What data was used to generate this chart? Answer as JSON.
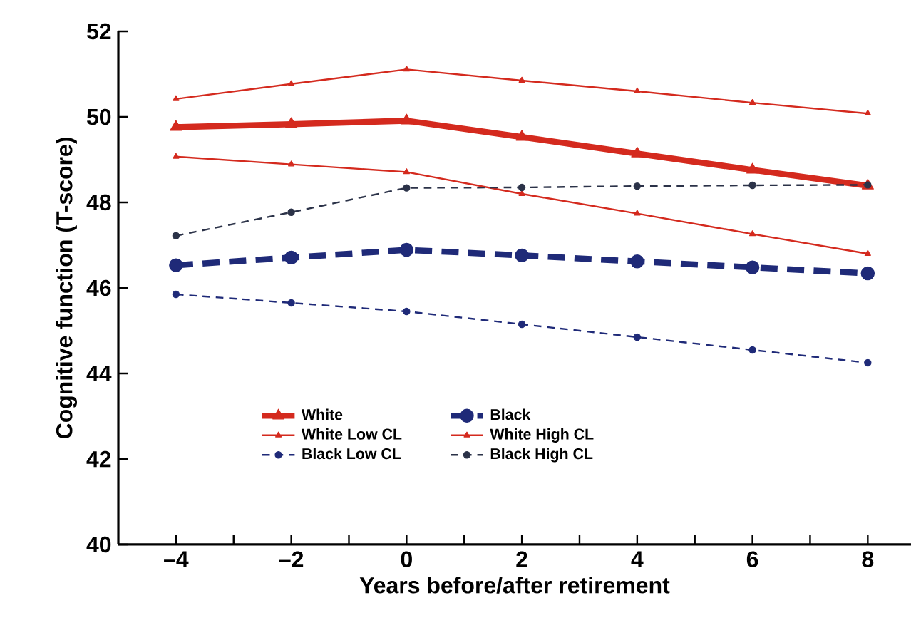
{
  "chart_data": {
    "type": "line",
    "xlabel": "Years before/after retirement",
    "ylabel": "Cognitive function (T-score)",
    "x": [
      -4,
      -2,
      0,
      2,
      4,
      6,
      8
    ],
    "series": [
      {
        "name": "White",
        "color": "#d42a1e",
        "marker": "triangle",
        "line_style": "solid",
        "values": [
          49.76,
          49.83,
          49.91,
          49.53,
          49.14,
          48.76,
          48.39
        ]
      },
      {
        "name": "Black",
        "color": "#1f2a78",
        "marker": "circle",
        "line_style": "dashed",
        "values": [
          46.53,
          46.71,
          46.89,
          46.76,
          46.62,
          46.48,
          46.34
        ]
      },
      {
        "name": "White Low CL",
        "color": "#d42a1e",
        "marker": "triangle",
        "line_style": "solid",
        "values": [
          49.07,
          48.89,
          48.71,
          48.2,
          47.74,
          47.26,
          46.8
        ]
      },
      {
        "name": "White High CL",
        "color": "#d42a1e",
        "marker": "triangle",
        "line_style": "solid",
        "values": [
          50.42,
          50.77,
          51.11,
          50.85,
          50.6,
          50.33,
          50.08
        ]
      },
      {
        "name": "Black Low CL",
        "color": "#1f2a78",
        "marker": "circle",
        "line_style": "dashed",
        "values": [
          45.85,
          45.65,
          45.45,
          45.15,
          44.85,
          44.55,
          44.25
        ]
      },
      {
        "name": "Black High CL",
        "color": "#2b3248",
        "marker": "circle",
        "line_style": "dashed",
        "values": [
          47.22,
          47.77,
          48.34,
          48.35,
          48.38,
          48.4,
          48.41
        ]
      }
    ],
    "xlim": [
      -5,
      8.75
    ],
    "ylim": [
      40,
      52
    ],
    "xticks": [
      {
        "value": -4,
        "label": "–4"
      },
      {
        "value": -3,
        "label": null
      },
      {
        "value": -2,
        "label": "–2"
      },
      {
        "value": -1,
        "label": null
      },
      0,
      {
        "value": 1,
        "label": null
      },
      2,
      {
        "value": 3,
        "label": null
      },
      4,
      {
        "value": 5,
        "label": null
      },
      6,
      {
        "value": 7,
        "label": null
      },
      8
    ],
    "yticks": [
      40,
      42,
      44,
      46,
      48,
      50,
      52
    ],
    "grid": false,
    "legend": "bottom left"
  }
}
